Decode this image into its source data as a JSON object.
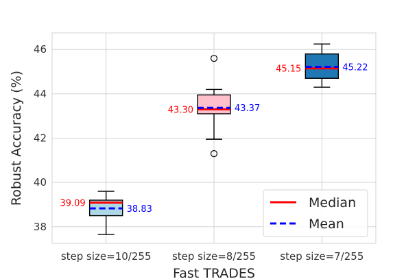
{
  "chart_data": {
    "type": "box",
    "xlabel": "Fast TRADES",
    "ylabel": "Robust Accuracy (%)",
    "ylim": [
      37.25,
      46.75
    ],
    "yticks": [
      38,
      40,
      42,
      44,
      46
    ],
    "grid": true,
    "legend_position": "bottom-right",
    "categories": [
      "step size=10/255",
      "step size=8/255",
      "step size=7/255"
    ],
    "boxes": [
      {
        "category": "step size=10/255",
        "whisker_low": 37.65,
        "q1": 38.5,
        "median": 39.09,
        "q3": 39.2,
        "whisker_high": 39.6,
        "mean": 38.83,
        "outliers": [],
        "fill": "#add8e6",
        "median_label": "39.09",
        "mean_label": "38.83"
      },
      {
        "category": "step size=8/255",
        "whisker_low": 41.95,
        "q1": 43.1,
        "median": 43.3,
        "q3": 43.95,
        "whisker_high": 44.2,
        "mean": 43.37,
        "outliers": [
          45.6,
          41.3
        ],
        "fill": "#ffc0cb",
        "median_label": "43.30",
        "mean_label": "43.37"
      },
      {
        "category": "step size=7/255",
        "whisker_low": 44.3,
        "q1": 44.7,
        "median": 45.15,
        "q3": 45.8,
        "whisker_high": 46.25,
        "mean": 45.22,
        "outliers": [],
        "fill": "#1f77b4",
        "median_label": "45.15",
        "mean_label": "45.22"
      }
    ],
    "legend": [
      {
        "label": "Median",
        "color": "#ff0000",
        "style": "solid"
      },
      {
        "label": "Mean",
        "color": "#0000ff",
        "style": "dashed"
      }
    ],
    "colors": {
      "median": "#ff0000",
      "mean": "#0000ff",
      "grid": "#d3d3d3"
    }
  }
}
